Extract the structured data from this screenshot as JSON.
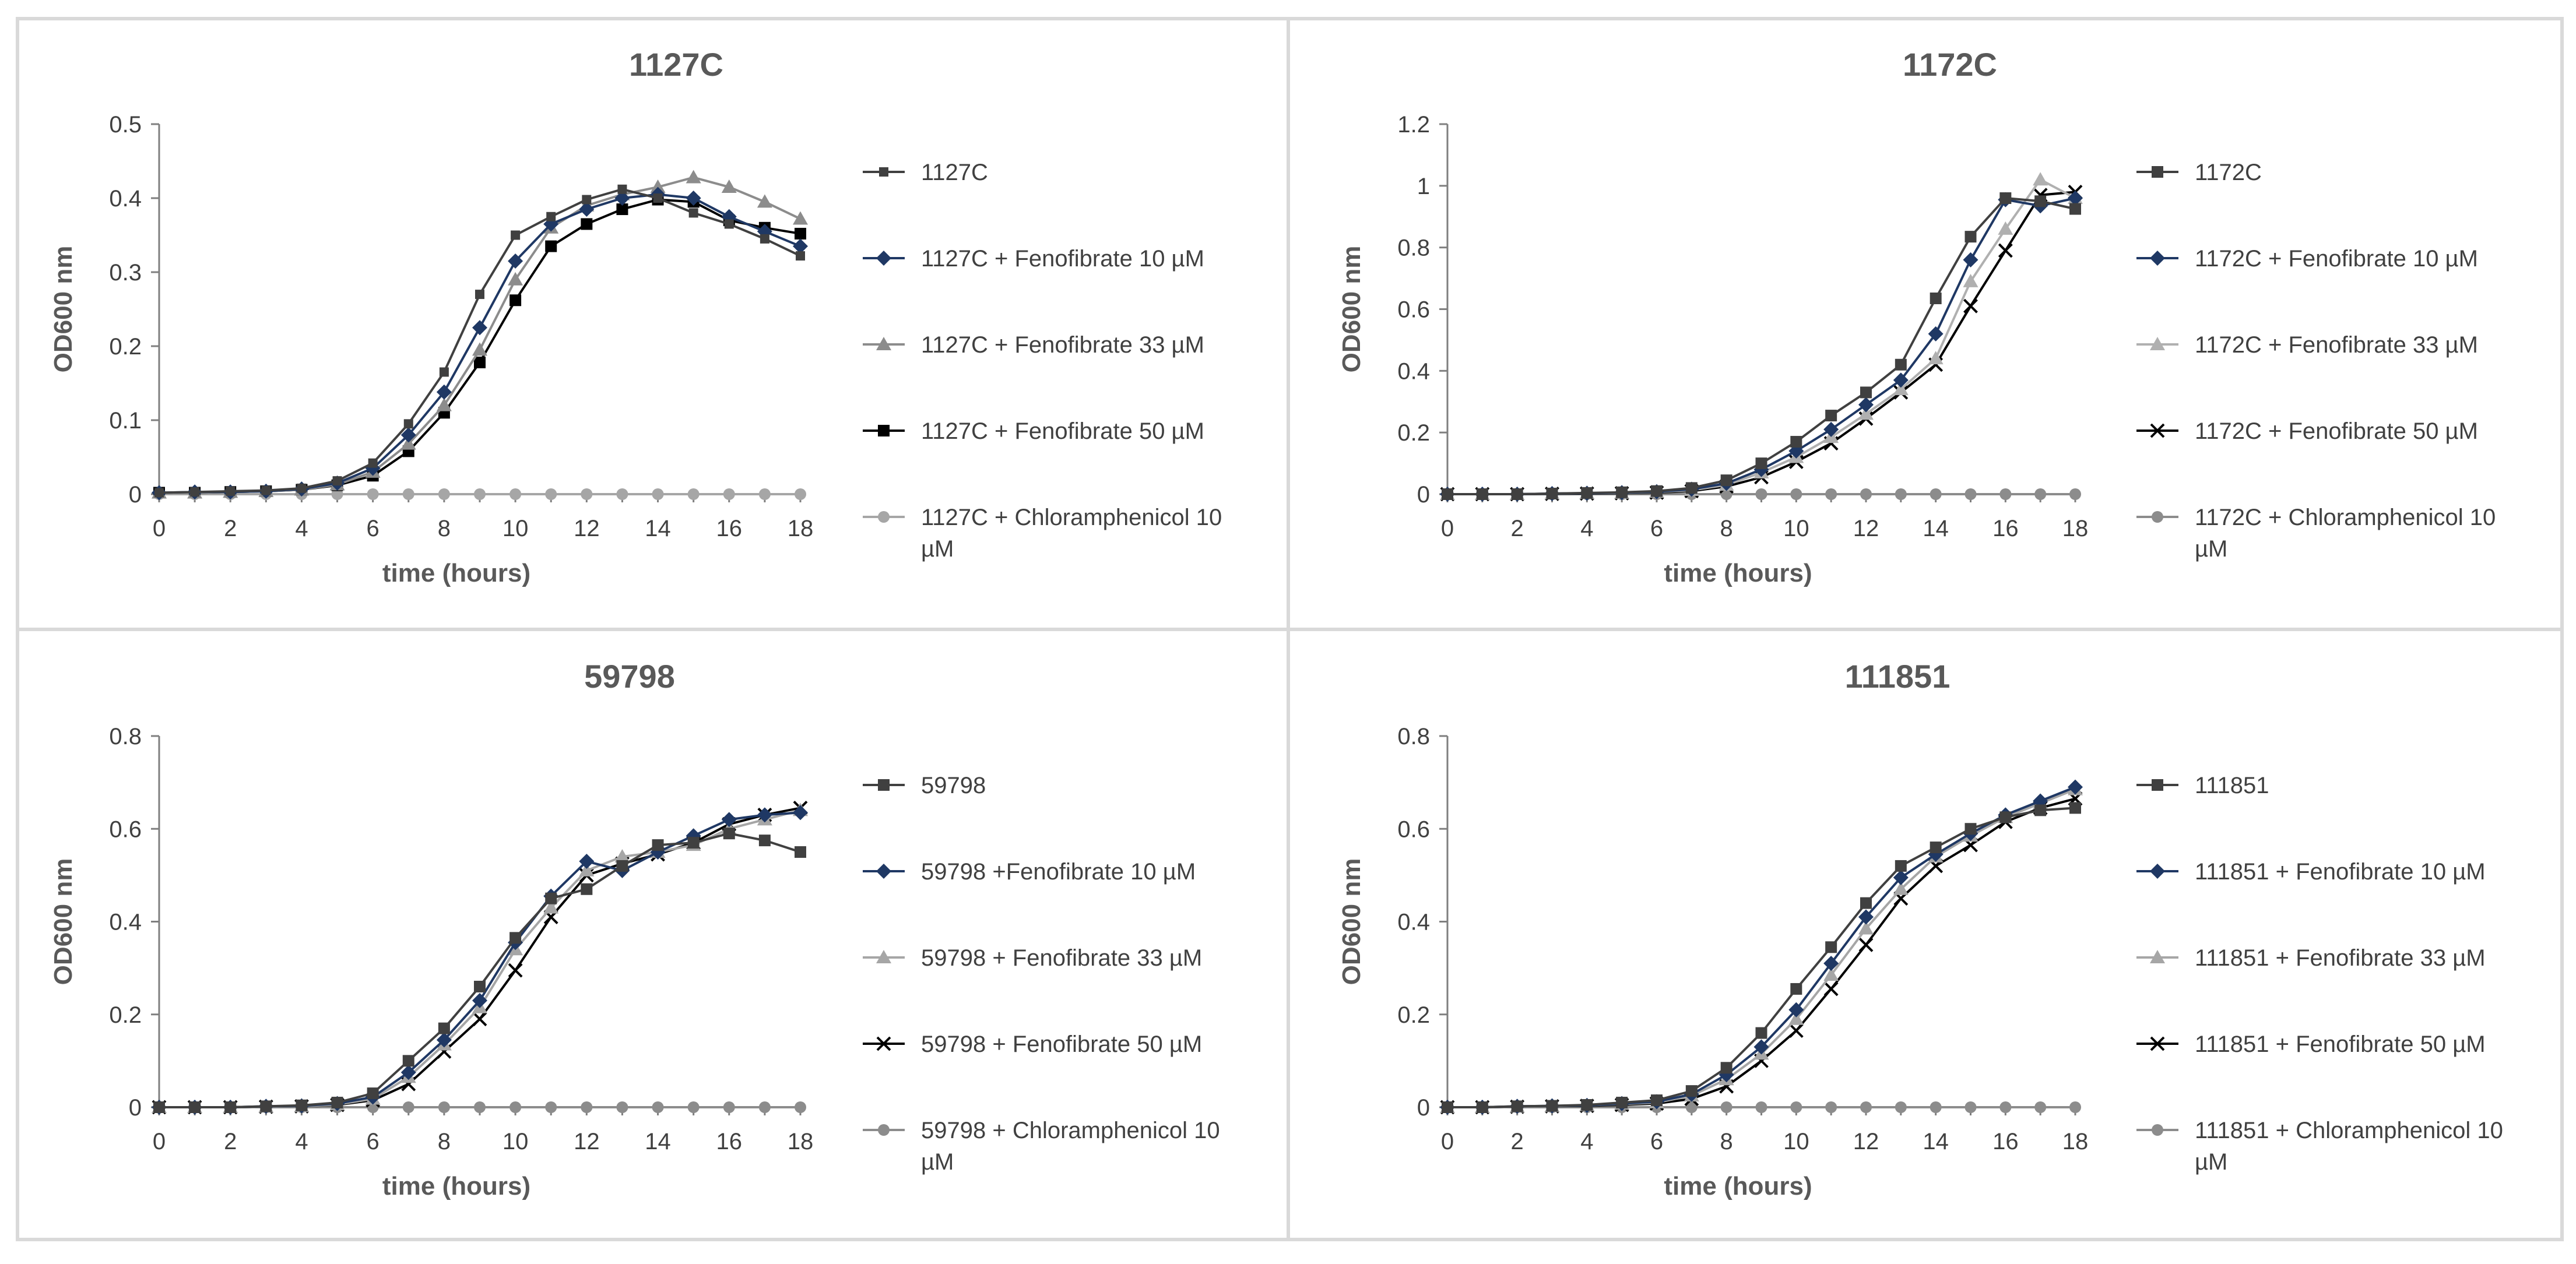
{
  "figure": {
    "description_none": ""
  },
  "chart_data": [
    {
      "type": "line",
      "title": "1127C",
      "xlabel": "time (hours)",
      "ylabel": "OD600 nm",
      "xlim": [
        0,
        18
      ],
      "ylim": [
        0,
        0.5
      ],
      "xticks": [
        "0",
        "2",
        "4",
        "6",
        "8",
        "10",
        "12",
        "14",
        "16",
        "18"
      ],
      "yticks": [
        "0",
        "0.1",
        "0.2",
        "0.3",
        "0.4",
        "0.5"
      ],
      "ytick_values": [
        0,
        0.1,
        0.2,
        0.3,
        0.4,
        0.5
      ],
      "grid": false,
      "legend_position": "right",
      "x": [
        0,
        1,
        2,
        3,
        4,
        5,
        6,
        7,
        8,
        9,
        10,
        11,
        12,
        13,
        14,
        15,
        16,
        17,
        18
      ],
      "series": [
        {
          "name": "1127C",
          "marker": "square-small",
          "color": "#404040",
          "values": [
            0.002,
            0.003,
            0.004,
            0.005,
            0.008,
            0.018,
            0.042,
            0.095,
            0.165,
            0.27,
            0.35,
            0.375,
            0.398,
            0.412,
            0.4,
            0.38,
            0.365,
            0.345,
            0.322
          ]
        },
        {
          "name": "1127C + Fenofibrate 10 µM",
          "marker": "diamond",
          "color": "#1f3864",
          "values": [
            0.002,
            0.003,
            0.003,
            0.004,
            0.007,
            0.015,
            0.035,
            0.08,
            0.138,
            0.225,
            0.315,
            0.365,
            0.385,
            0.4,
            0.405,
            0.4,
            0.375,
            0.355,
            0.335
          ]
        },
        {
          "name": "1127C + Fenofibrate 33 µM",
          "marker": "triangle",
          "color": "#8c8c8c",
          "values": [
            0.002,
            0.002,
            0.003,
            0.004,
            0.006,
            0.013,
            0.03,
            0.068,
            0.12,
            0.195,
            0.29,
            0.36,
            0.39,
            0.405,
            0.415,
            0.428,
            0.415,
            0.395,
            0.372
          ]
        },
        {
          "name": "1127C + Fenofibrate  50 µM",
          "marker": "square",
          "color": "#000000",
          "values": [
            0.002,
            0.002,
            0.003,
            0.004,
            0.006,
            0.012,
            0.025,
            0.058,
            0.11,
            0.178,
            0.262,
            0.335,
            0.365,
            0.385,
            0.398,
            0.395,
            0.37,
            0.36,
            0.352
          ]
        },
        {
          "name": "1127C + Chloramphenicol 10 µM",
          "name_line1": "1127C + Chloramphenicol 10",
          "name_line2": "µM",
          "marker": "circle",
          "color": "#a6a6a6",
          "values": [
            0,
            0,
            0,
            0,
            0,
            0,
            0,
            0,
            0,
            0,
            0,
            0,
            0,
            0,
            0,
            0,
            0,
            0,
            0
          ]
        }
      ]
    },
    {
      "type": "line",
      "title": "1172C",
      "xlabel": "time (hours)",
      "ylabel": "OD600 nm",
      "xlim": [
        0,
        18
      ],
      "ylim": [
        0,
        1.2
      ],
      "xticks": [
        "0",
        "2",
        "4",
        "6",
        "8",
        "10",
        "12",
        "14",
        "16",
        "18"
      ],
      "yticks": [
        "0",
        "0.2",
        "0.4",
        "0.6",
        "0.8",
        "1",
        "1.2"
      ],
      "ytick_values": [
        0,
        0.2,
        0.4,
        0.6,
        0.8,
        1,
        1.2
      ],
      "grid": false,
      "legend_position": "right",
      "x": [
        0,
        1,
        2,
        3,
        4,
        5,
        6,
        7,
        8,
        9,
        10,
        11,
        12,
        13,
        14,
        15,
        16,
        17,
        18
      ],
      "series": [
        {
          "name": "1172C",
          "marker": "square",
          "color": "#404040",
          "values": [
            0,
            0,
            0,
            0.002,
            0.004,
            0.006,
            0.01,
            0.02,
            0.045,
            0.1,
            0.17,
            0.255,
            0.33,
            0.42,
            0.635,
            0.835,
            0.96,
            0.95,
            0.925
          ]
        },
        {
          "name": "1172C + Fenofibrate 10 µM",
          "marker": "diamond",
          "color": "#1f3864",
          "values": [
            0,
            0,
            0,
            0.002,
            0.003,
            0.005,
            0.008,
            0.016,
            0.035,
            0.08,
            0.14,
            0.21,
            0.29,
            0.37,
            0.52,
            0.76,
            0.955,
            0.935,
            0.96
          ]
        },
        {
          "name": "1172C + Fenofibrate 33 µM",
          "marker": "triangle",
          "color": "#b0b0b0",
          "values": [
            0,
            0,
            0,
            0.002,
            0.003,
            0.004,
            0.007,
            0.013,
            0.03,
            0.07,
            0.12,
            0.185,
            0.26,
            0.34,
            0.44,
            0.69,
            0.86,
            1.02,
            0.96
          ]
        },
        {
          "name": "1172C + Fenofibrate 50 µM",
          "marker": "x",
          "color": "#000000",
          "values": [
            0,
            0,
            0,
            0.001,
            0.002,
            0.003,
            0.005,
            0.01,
            0.025,
            0.055,
            0.105,
            0.165,
            0.245,
            0.33,
            0.42,
            0.61,
            0.79,
            0.97,
            0.98
          ]
        },
        {
          "name": "1172C + Chloramphenicol 10 µM",
          "name_line1": "1172C + Chloramphenicol 10",
          "name_line2": "µM",
          "marker": "circle",
          "color": "#8c8c8c",
          "values": [
            0,
            0,
            0,
            0,
            0,
            0,
            0,
            0,
            0,
            0,
            0,
            0,
            0,
            0,
            0,
            0,
            0,
            0,
            0
          ]
        }
      ]
    },
    {
      "type": "line",
      "title": "59798",
      "xlabel": "time (hours)",
      "ylabel": "OD600 nm",
      "xlim": [
        0,
        18
      ],
      "ylim": [
        0,
        0.8
      ],
      "xticks": [
        "0",
        "2",
        "4",
        "6",
        "8",
        "10",
        "12",
        "14",
        "16",
        "18"
      ],
      "yticks": [
        "0",
        "0.2",
        "0.4",
        "0.6",
        "0.8"
      ],
      "ytick_values": [
        0,
        0.2,
        0.4,
        0.6,
        0.8
      ],
      "grid": false,
      "legend_position": "right",
      "x": [
        0,
        1,
        2,
        3,
        4,
        5,
        6,
        7,
        8,
        9,
        10,
        11,
        12,
        13,
        14,
        15,
        16,
        17,
        18
      ],
      "series": [
        {
          "name": "59798",
          "marker": "square",
          "color": "#404040",
          "values": [
            0,
            0,
            0,
            0.002,
            0.004,
            0.01,
            0.03,
            0.1,
            0.17,
            0.26,
            0.365,
            0.45,
            0.47,
            0.52,
            0.565,
            0.57,
            0.59,
            0.575,
            0.55
          ]
        },
        {
          "name": "59798 +Fenofibrate 10 µM",
          "marker": "diamond",
          "color": "#1f3864",
          "values": [
            0,
            0,
            0,
            0.002,
            0.003,
            0.008,
            0.022,
            0.075,
            0.145,
            0.23,
            0.355,
            0.455,
            0.53,
            0.51,
            0.55,
            0.585,
            0.62,
            0.63,
            0.635
          ]
        },
        {
          "name": "59798 + Fenofibrate 33 µM",
          "marker": "triangle",
          "color": "#a6a6a6",
          "values": [
            0,
            0,
            0,
            0.001,
            0.002,
            0.006,
            0.018,
            0.065,
            0.135,
            0.215,
            0.34,
            0.43,
            0.51,
            0.54,
            0.55,
            0.565,
            0.6,
            0.62,
            0.64
          ]
        },
        {
          "name": "59798 + Fenofibrate 50 µM",
          "marker": "x",
          "color": "#000000",
          "values": [
            0,
            0,
            0,
            0.001,
            0.002,
            0.005,
            0.015,
            0.05,
            0.12,
            0.19,
            0.295,
            0.41,
            0.5,
            0.525,
            0.545,
            0.57,
            0.61,
            0.63,
            0.645
          ]
        },
        {
          "name": "59798 + Chloramphenicol 10 µM",
          "name_line1": "59798 + Chloramphenicol 10",
          "name_line2": "µM",
          "marker": "circle",
          "color": "#8c8c8c",
          "values": [
            0,
            0,
            0,
            0,
            0,
            0,
            0,
            0,
            0,
            0,
            0,
            0,
            0,
            0,
            0,
            0,
            0,
            0,
            0
          ]
        }
      ]
    },
    {
      "type": "line",
      "title": "111851",
      "xlabel": "time (hours)",
      "ylabel": "OD600 nm",
      "xlim": [
        0,
        18
      ],
      "ylim": [
        0,
        0.8
      ],
      "xticks": [
        "0",
        "2",
        "4",
        "6",
        "8",
        "10",
        "12",
        "14",
        "16",
        "18"
      ],
      "yticks": [
        "0",
        "0.2",
        "0.4",
        "0.6",
        "0.8"
      ],
      "ytick_values": [
        0,
        0.2,
        0.4,
        0.6,
        0.8
      ],
      "grid": false,
      "legend_position": "right",
      "x": [
        0,
        1,
        2,
        3,
        4,
        5,
        6,
        7,
        8,
        9,
        10,
        11,
        12,
        13,
        14,
        15,
        16,
        17,
        18
      ],
      "series": [
        {
          "name": "111851",
          "marker": "square",
          "color": "#404040",
          "values": [
            0,
            0,
            0.002,
            0.003,
            0.005,
            0.01,
            0.015,
            0.035,
            0.085,
            0.16,
            0.255,
            0.345,
            0.44,
            0.52,
            0.56,
            0.6,
            0.625,
            0.64,
            0.645
          ]
        },
        {
          "name": "111851 + Fenofibrate 10 µM",
          "marker": "diamond",
          "color": "#1f3864",
          "values": [
            0,
            0,
            0.002,
            0.003,
            0.004,
            0.008,
            0.012,
            0.028,
            0.07,
            0.13,
            0.21,
            0.31,
            0.41,
            0.495,
            0.545,
            0.59,
            0.63,
            0.66,
            0.69
          ]
        },
        {
          "name": "111851 + Fenofibrate 33 µM",
          "marker": "triangle",
          "color": "#a6a6a6",
          "values": [
            0,
            0,
            0.001,
            0.002,
            0.004,
            0.007,
            0.01,
            0.025,
            0.06,
            0.115,
            0.19,
            0.285,
            0.385,
            0.47,
            0.54,
            0.585,
            0.625,
            0.655,
            0.685
          ]
        },
        {
          "name": "111851 + Fenofibrate 50 µM",
          "marker": "x",
          "color": "#000000",
          "values": [
            0,
            0,
            0.001,
            0.002,
            0.003,
            0.005,
            0.008,
            0.018,
            0.045,
            0.1,
            0.165,
            0.255,
            0.35,
            0.45,
            0.52,
            0.565,
            0.615,
            0.645,
            0.665
          ]
        },
        {
          "name": "111851 + Chloramphenicol 10 µM",
          "name_line1": "111851 + Chloramphenicol 10",
          "name_line2": "µM",
          "marker": "circle",
          "color": "#8c8c8c",
          "values": [
            0,
            0,
            0,
            0,
            0,
            0,
            0,
            0,
            0,
            0,
            0,
            0,
            0,
            0,
            0,
            0,
            0,
            0,
            0
          ]
        }
      ]
    }
  ]
}
